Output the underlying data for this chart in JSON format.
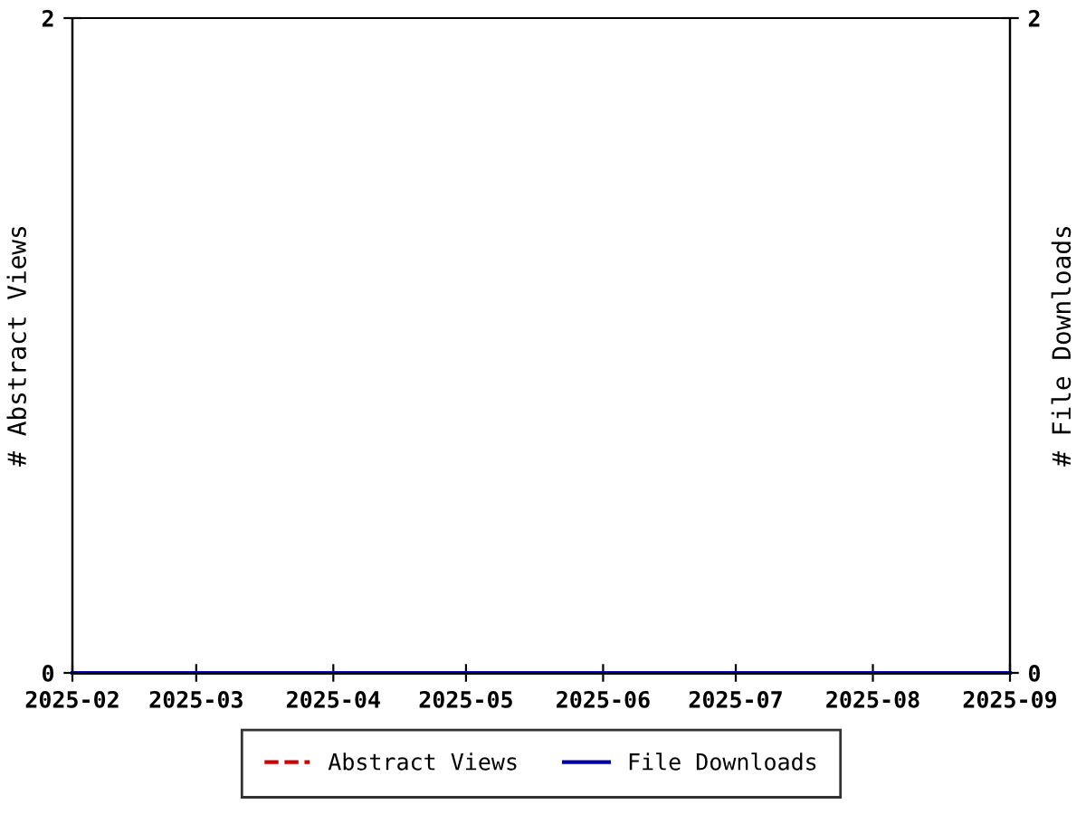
{
  "chart_data": {
    "type": "line",
    "xlabel": null,
    "ylabel": "# Abstract Views",
    "y2label": "# File Downloads",
    "x": [
      "2025-02",
      "2025-03",
      "2025-04",
      "2025-05",
      "2025-06",
      "2025-07",
      "2025-08",
      "2025-09"
    ],
    "series": [
      {
        "name": "Abstract Views",
        "color": "#cc0000",
        "line_style": "dashed",
        "values": [
          null,
          null,
          null,
          null,
          null,
          null,
          null,
          null
        ]
      },
      {
        "name": "File Downloads",
        "color": "#0000aa",
        "line_style": "solid",
        "axis": "y2",
        "values": [
          0,
          0,
          0,
          0,
          0,
          0,
          0,
          0
        ]
      }
    ],
    "xlim": [
      "2025-02",
      "2025-09"
    ],
    "xticks": [
      "2025-02",
      "2025-03",
      "2025-04",
      "2025-05",
      "2025-06",
      "2025-07",
      "2025-08",
      "2025-09"
    ],
    "ylim": [
      0,
      2
    ],
    "yticks": [
      0,
      2
    ],
    "y2lim": [
      0,
      2
    ],
    "y2ticks": [
      0,
      2
    ],
    "grid": false,
    "legend": "bottom",
    "marker": "none"
  }
}
